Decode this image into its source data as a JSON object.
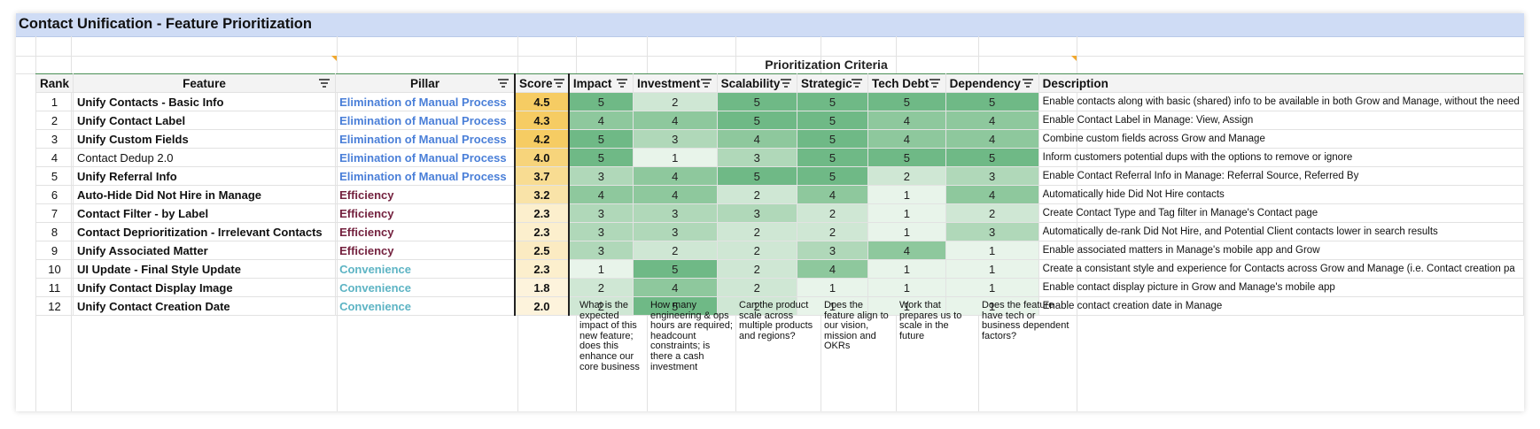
{
  "title": "Contact Unification - Feature Prioritization",
  "criteria_header": "Prioritization Criteria",
  "headers": {
    "rank": "Rank",
    "feature": "Feature",
    "pillar": "Pillar",
    "score": "Score",
    "impact": "Impact",
    "investment": "Investment",
    "scalability": "Scalability",
    "strategic": "Strategic",
    "tech_debt": "Tech Debt",
    "dependency": "Dependency",
    "description": "Description"
  },
  "colors": {
    "elimination": "#4a7fd8",
    "efficiency": "#74223f",
    "convenience": "#5db4c4"
  },
  "rows": [
    {
      "rank": "1",
      "feature": "Unify Contacts - Basic Info",
      "pillar": "Elimination of Manual Process",
      "ptype": "elim",
      "score": "4.5",
      "impact": "5",
      "investment": "2",
      "scalability": "5",
      "strategic": "5",
      "tech_debt": "5",
      "dependency": "5",
      "description": "Enable contacts along with basic (shared) info to be available in both Grow and Manage, without the need"
    },
    {
      "rank": "2",
      "feature": "Unify Contact Label",
      "pillar": "Elimination of Manual Process",
      "ptype": "elim",
      "score": "4.3",
      "impact": "4",
      "investment": "4",
      "scalability": "5",
      "strategic": "5",
      "tech_debt": "4",
      "dependency": "4",
      "description": "Enable Contact Label in Manage: View, Assign"
    },
    {
      "rank": "3",
      "feature": "Unify Custom Fields",
      "pillar": "Elimination of Manual Process",
      "ptype": "elim",
      "score": "4.2",
      "impact": "5",
      "investment": "3",
      "scalability": "4",
      "strategic": "5",
      "tech_debt": "4",
      "dependency": "4",
      "description": "Combine custom fields across Grow and Manage"
    },
    {
      "rank": "4",
      "feature": "Contact Dedup 2.0",
      "pillar": "Elimination of Manual Process",
      "ptype": "elim",
      "score": "4.0",
      "impact": "5",
      "investment": "1",
      "scalability": "3",
      "strategic": "5",
      "tech_debt": "5",
      "dependency": "5",
      "description": "Inform customers potential dups with the options to remove or ignore"
    },
    {
      "rank": "5",
      "feature": "Unify Referral Info",
      "pillar": "Elimination of Manual Process",
      "ptype": "elim",
      "score": "3.7",
      "impact": "3",
      "investment": "4",
      "scalability": "5",
      "strategic": "5",
      "tech_debt": "2",
      "dependency": "3",
      "description": "Enable Contact Referral Info in Manage: Referral Source, Referred By"
    },
    {
      "rank": "6",
      "feature": "Auto-Hide Did Not Hire in Manage",
      "pillar": "Efficiency",
      "ptype": "eff",
      "score": "3.2",
      "impact": "4",
      "investment": "4",
      "scalability": "2",
      "strategic": "4",
      "tech_debt": "1",
      "dependency": "4",
      "description": "Automatically hide Did Not Hire contacts"
    },
    {
      "rank": "7",
      "feature": "Contact Filter - by Label",
      "pillar": "Efficiency",
      "ptype": "eff",
      "score": "2.3",
      "impact": "3",
      "investment": "3",
      "scalability": "3",
      "strategic": "2",
      "tech_debt": "1",
      "dependency": "2",
      "description": "Create Contact Type and Tag filter in Manage's Contact page"
    },
    {
      "rank": "8",
      "feature": "Contact Deprioritization - Irrelevant Contacts",
      "pillar": "Efficiency",
      "ptype": "eff",
      "score": "2.3",
      "impact": "3",
      "investment": "3",
      "scalability": "2",
      "strategic": "2",
      "tech_debt": "1",
      "dependency": "3",
      "description": "Automatically de-rank Did Not Hire, and Potential Client contacts lower in search results"
    },
    {
      "rank": "9",
      "feature": "Unify Associated Matter",
      "pillar": "Efficiency",
      "ptype": "eff",
      "score": "2.5",
      "impact": "3",
      "investment": "2",
      "scalability": "2",
      "strategic": "3",
      "tech_debt": "4",
      "dependency": "1",
      "description": "Enable associated matters in Manage's mobile app and Grow"
    },
    {
      "rank": "10",
      "feature": "UI Update - Final Style Update",
      "pillar": "Convenience",
      "ptype": "conv",
      "score": "2.3",
      "impact": "1",
      "investment": "5",
      "scalability": "2",
      "strategic": "4",
      "tech_debt": "1",
      "dependency": "1",
      "description": "Create a consistant style and experience for Contacts across Grow and Manage (i.e. Contact creation pa"
    },
    {
      "rank": "11",
      "feature": "Unify Contact Display Image",
      "pillar": "Convenience",
      "ptype": "conv",
      "score": "1.8",
      "impact": "2",
      "investment": "4",
      "scalability": "2",
      "strategic": "1",
      "tech_debt": "1",
      "dependency": "1",
      "description": "Enable contact display picture in Grow and Manage's mobile app"
    },
    {
      "rank": "12",
      "feature": "Unify Contact Creation Date",
      "pillar": "Convenience",
      "ptype": "conv",
      "score": "2.0",
      "impact": "2",
      "investment": "5",
      "scalability": "2",
      "strategic": "1",
      "tech_debt": "1",
      "dependency": "1",
      "description": "Enable contact creation date in Manage"
    }
  ],
  "notes": {
    "impact": "What is the expected impact of this new feature; does this enhance our core business",
    "investment": "How many engineering & ops hours are required; headcount constraints; is there a cash investment",
    "scalability": "Can the product scale across multiple products and regions?",
    "strategic": "Does the feature align to our vision, mission and OKRs",
    "tech_debt": "Work that prepares us to scale in the future",
    "dependency": "Does the feature have tech or business dependent factors?"
  }
}
